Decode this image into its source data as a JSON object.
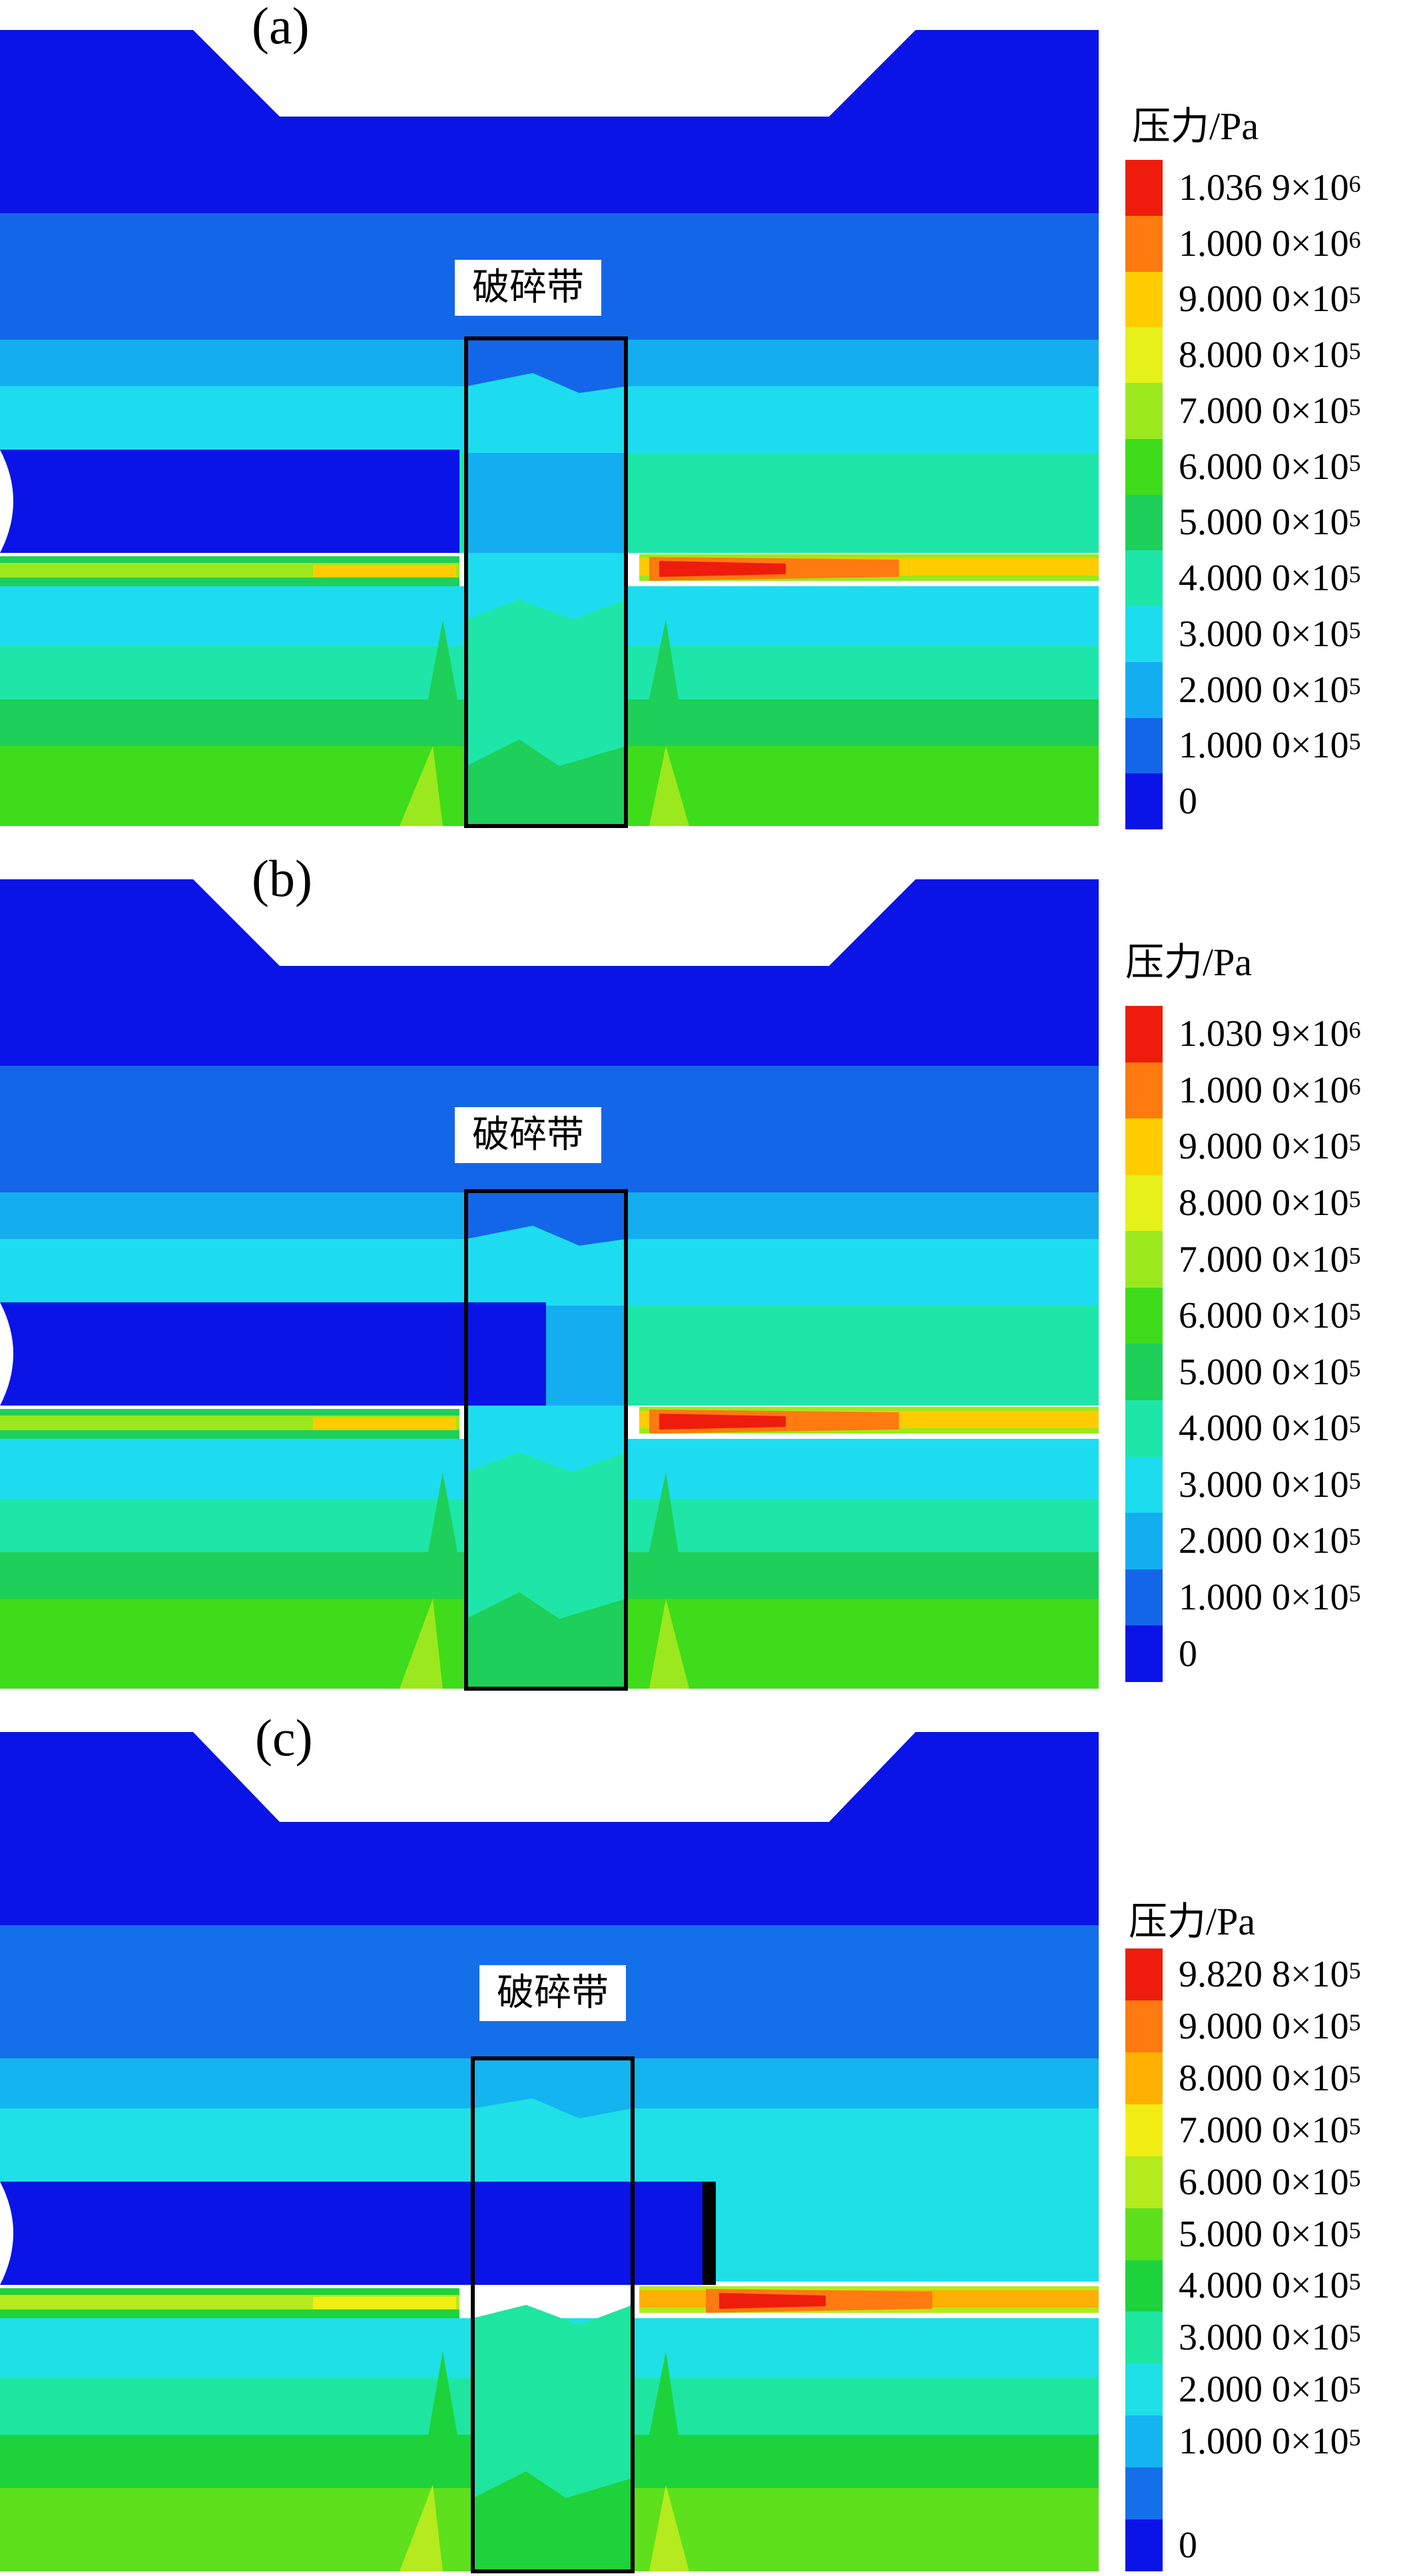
{
  "panels": [
    {
      "label": "(a)",
      "zone_label": "破碎带",
      "legend": {
        "title_cn": "压力",
        "title_unit": "/Pa",
        "levels": [
          {
            "mantissa": "1.036 9",
            "times": "×",
            "base": "10",
            "exp": "6",
            "color": "#ee1c0c"
          },
          {
            "mantissa": "1.000 0",
            "times": "×",
            "base": "10",
            "exp": "6",
            "color": "#ff7a10"
          },
          {
            "mantissa": "9.000 0",
            "times": "×",
            "base": "10",
            "exp": "5",
            "color": "#ffcc00"
          },
          {
            "mantissa": "8.000 0",
            "times": "×",
            "base": "10",
            "exp": "5",
            "color": "#e6f01a"
          },
          {
            "mantissa": "7.000 0",
            "times": "×",
            "base": "10",
            "exp": "5",
            "color": "#9be81e"
          },
          {
            "mantissa": "6.000 0",
            "times": "×",
            "base": "10",
            "exp": "5",
            "color": "#3fdc1c"
          },
          {
            "mantissa": "5.000 0",
            "times": "×",
            "base": "10",
            "exp": "5",
            "color": "#1ecf5a"
          },
          {
            "mantissa": "4.000 0",
            "times": "×",
            "base": "10",
            "exp": "5",
            "color": "#1ee6a8"
          },
          {
            "mantissa": "3.000 0",
            "times": "×",
            "base": "10",
            "exp": "5",
            "color": "#1edcf0"
          },
          {
            "mantissa": "2.000 0",
            "times": "×",
            "base": "10",
            "exp": "5",
            "color": "#14aef0"
          },
          {
            "mantissa": "1.000 0",
            "times": "×",
            "base": "10",
            "exp": "5",
            "color": "#1466e8"
          },
          {
            "mantissa": "0",
            "times": "",
            "base": "",
            "exp": "",
            "color": "#0a14e6"
          }
        ]
      }
    },
    {
      "label": "(b)",
      "zone_label": "破碎带",
      "legend": {
        "title_cn": "压力",
        "title_unit": "/Pa",
        "levels": [
          {
            "mantissa": "1.030 9",
            "times": "×",
            "base": "10",
            "exp": "6",
            "color": "#ee1c0c"
          },
          {
            "mantissa": "1.000 0",
            "times": "×",
            "base": "10",
            "exp": "6",
            "color": "#ff7a10"
          },
          {
            "mantissa": "9.000 0",
            "times": "×",
            "base": "10",
            "exp": "5",
            "color": "#ffcc00"
          },
          {
            "mantissa": "8.000 0",
            "times": "×",
            "base": "10",
            "exp": "5",
            "color": "#e6f01a"
          },
          {
            "mantissa": "7.000 0",
            "times": "×",
            "base": "10",
            "exp": "5",
            "color": "#9be81e"
          },
          {
            "mantissa": "6.000 0",
            "times": "×",
            "base": "10",
            "exp": "5",
            "color": "#3fdc1c"
          },
          {
            "mantissa": "5.000 0",
            "times": "×",
            "base": "10",
            "exp": "5",
            "color": "#1ecf5a"
          },
          {
            "mantissa": "4.000 0",
            "times": "×",
            "base": "10",
            "exp": "5",
            "color": "#1ee6a8"
          },
          {
            "mantissa": "3.000 0",
            "times": "×",
            "base": "10",
            "exp": "5",
            "color": "#1edcf0"
          },
          {
            "mantissa": "2.000 0",
            "times": "×",
            "base": "10",
            "exp": "5",
            "color": "#14aef0"
          },
          {
            "mantissa": "1.000 0",
            "times": "×",
            "base": "10",
            "exp": "5",
            "color": "#1466e8"
          },
          {
            "mantissa": "0",
            "times": "",
            "base": "",
            "exp": "",
            "color": "#0a14e6"
          }
        ]
      }
    },
    {
      "label": "(c)",
      "zone_label": "破碎带",
      "legend": {
        "title_cn": "压力",
        "title_unit": "/Pa",
        "levels": [
          {
            "mantissa": "9.820 8",
            "times": "×",
            "base": "10",
            "exp": "5",
            "color": "#ee1c0c"
          },
          {
            "mantissa": "9.000 0",
            "times": "×",
            "base": "10",
            "exp": "5",
            "color": "#ff7a10"
          },
          {
            "mantissa": "8.000 0",
            "times": "×",
            "base": "10",
            "exp": "5",
            "color": "#ffb000"
          },
          {
            "mantissa": "7.000 0",
            "times": "×",
            "base": "10",
            "exp": "5",
            "color": "#f2ee14"
          },
          {
            "mantissa": "6.000 0",
            "times": "×",
            "base": "10",
            "exp": "5",
            "color": "#b4ea1e"
          },
          {
            "mantissa": "5.000 0",
            "times": "×",
            "base": "10",
            "exp": "5",
            "color": "#5ee01c"
          },
          {
            "mantissa": "4.000 0",
            "times": "×",
            "base": "10",
            "exp": "5",
            "color": "#1ed23c"
          },
          {
            "mantissa": "3.000 0",
            "times": "×",
            "base": "10",
            "exp": "5",
            "color": "#1ee6a0"
          },
          {
            "mantissa": "2.000 0",
            "times": "×",
            "base": "10",
            "exp": "5",
            "color": "#1ee0e6"
          },
          {
            "mantissa": "1.000 0",
            "times": "×",
            "base": "10",
            "exp": "5",
            "color": "#14b4f0"
          },
          {
            "mantissa": "",
            "times": "",
            "base": "",
            "exp": "",
            "color": "#1470e8"
          },
          {
            "mantissa": "0",
            "times": "",
            "base": "",
            "exp": "",
            "color": "#0a14e6"
          }
        ]
      }
    }
  ]
}
